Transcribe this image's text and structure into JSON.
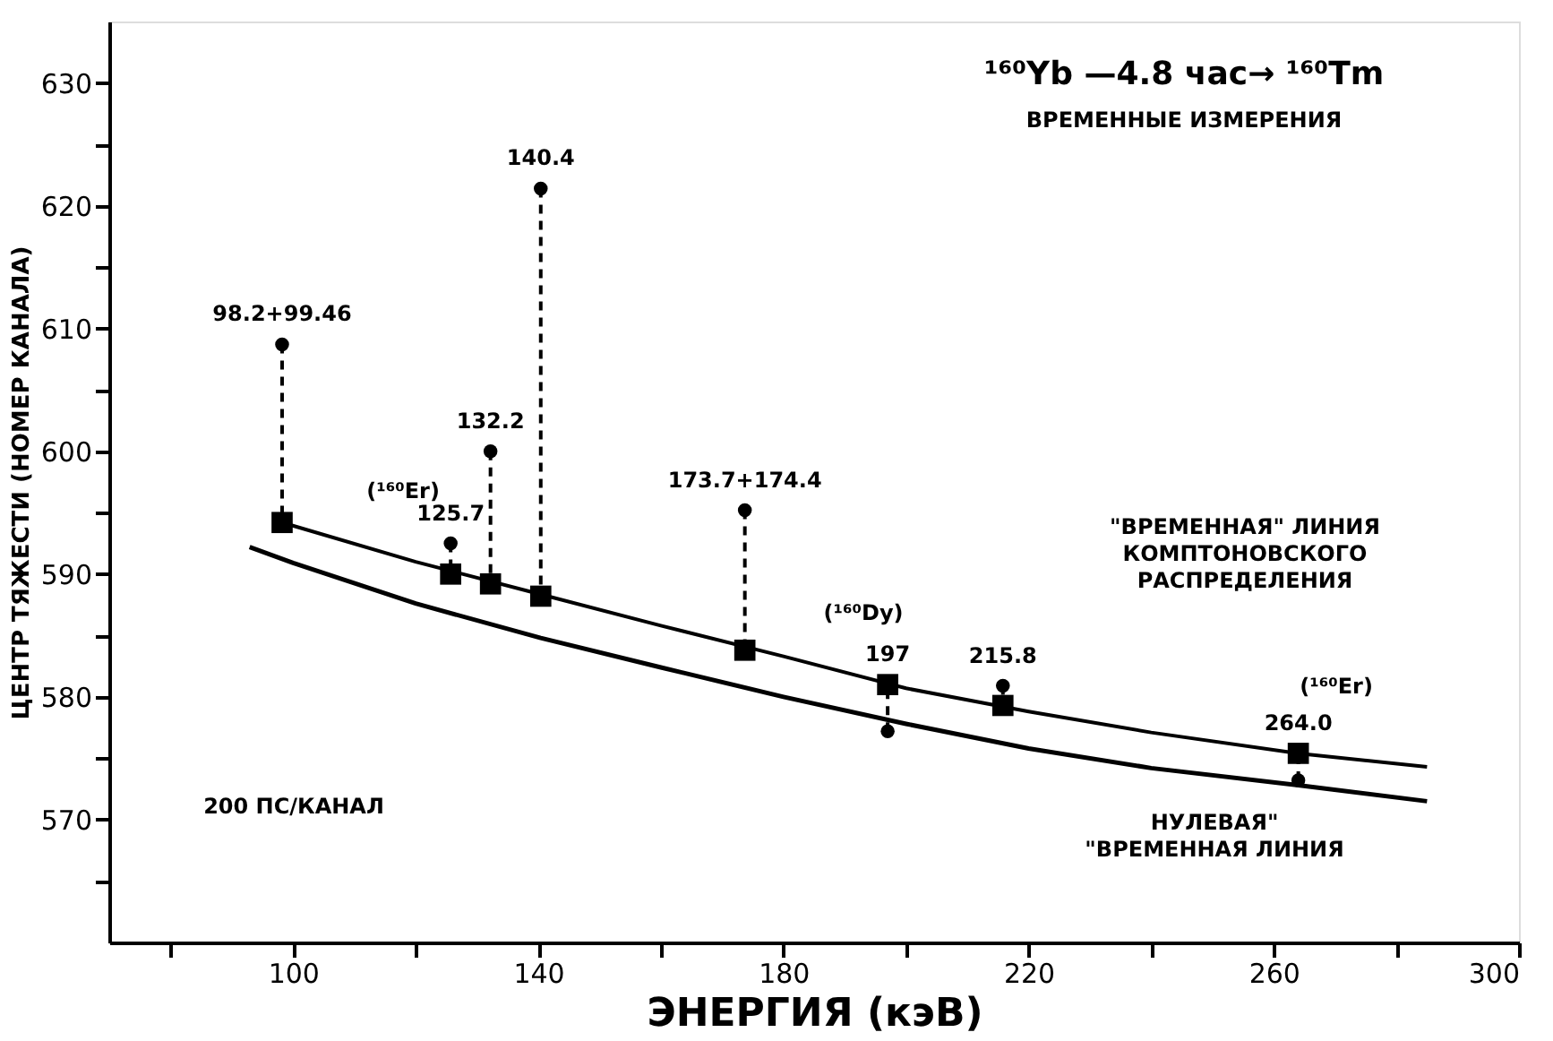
{
  "chart_data": {
    "type": "scatter",
    "title": "¹⁶⁰Yb —4.8 час→ ¹⁶⁰Tm",
    "subtitle": "ВРЕМЕННЫЕ ИЗМЕРЕНИЯ",
    "xlabel": "ЭНЕРГИЯ (кэВ)",
    "ylabel": "ЦЕНТР ТЯЖЕСТИ (НОМЕР КАНАЛА)",
    "xlim": [
      70,
      300
    ],
    "ylim": [
      560,
      635
    ],
    "xticks": [
      {
        "value": 80,
        "label": null
      },
      100,
      {
        "value": 120,
        "label": null
      },
      140,
      {
        "value": 160,
        "label": null
      },
      180,
      {
        "value": 200,
        "label": null
      },
      220,
      {
        "value": 240,
        "label": null
      },
      260,
      {
        "value": 280,
        "label": null
      },
      300
    ],
    "yticks": [
      {
        "value": 565,
        "label": null
      },
      570,
      {
        "value": 575,
        "label": null
      },
      580,
      {
        "value": 585,
        "label": null
      },
      590,
      {
        "value": 595,
        "label": null
      },
      600,
      {
        "value": 605,
        "label": null
      },
      610,
      {
        "value": 615,
        "label": null
      },
      620,
      {
        "value": 625,
        "label": null
      },
      630
    ],
    "series": [
      {
        "marker": "circle",
        "color": "#000000",
        "x": [
          98.2,
          125.7,
          132.2,
          140.4,
          173.7,
          197,
          215.8,
          264.0
        ],
        "values": [
          608.7,
          592.5,
          600,
          621.4,
          595.2,
          577.2,
          580.9,
          573.2
        ]
      },
      {
        "marker": "square",
        "color": "#000000",
        "x": [
          98.2,
          125.7,
          132.2,
          140.4,
          173.7,
          197,
          215.8,
          264.0
        ],
        "values": [
          594.2,
          590,
          589.2,
          588.2,
          583.8,
          581,
          579.3,
          575.4
        ]
      },
      {
        "type": "line",
        "color": "#000000",
        "x": [
          98.2,
          120,
          140,
          160,
          180,
          200,
          220,
          240,
          264,
          285
        ],
        "values": [
          594.2,
          591,
          588.4,
          585.8,
          583.3,
          580.7,
          578.8,
          577.1,
          575.4,
          574.3
        ]
      },
      {
        "type": "line",
        "color": "#000000",
        "x": [
          92.9,
          100,
          120,
          140.4,
          160,
          180,
          200,
          220,
          240,
          264,
          285
        ],
        "values": [
          592.2,
          590.9,
          587.6,
          584.8,
          582.4,
          580.0,
          577.8,
          575.8,
          574.2,
          572.8,
          571.5
        ]
      }
    ],
    "annotations": [
      {
        "text": "98.2+99.46",
        "x": 98.2,
        "y": 608.7
      },
      {
        "text": "125.7",
        "x": 125.7,
        "y": 592.5
      },
      {
        "text": "132.2",
        "x": 132.2,
        "y": 600
      },
      {
        "text": "140.4",
        "x": 140.4,
        "y": 621.4
      },
      {
        "text": "173.7+174.4",
        "x": 173.7,
        "y": 595.2
      },
      {
        "text": "197",
        "x": 197,
        "y": 581
      },
      {
        "text": "215.8",
        "x": 215.8,
        "y": 580.9
      },
      {
        "text": "264.0",
        "x": 264.0,
        "y": 575.4
      },
      "(¹⁶⁰Er)",
      "(¹⁶⁰Dy)",
      "(¹⁶⁰Er)",
      "200 ПС/КАНАЛ",
      "\"ВРЕМЕННАЯ\" ЛИНИЯ\nКОМПТОНОВСКОГО\nРАСПРЕДЕЛЕНИЯ",
      "НУЛЕВАЯ\"\n\"ВРЕМЕННАЯ ЛИНИЯ"
    ]
  }
}
